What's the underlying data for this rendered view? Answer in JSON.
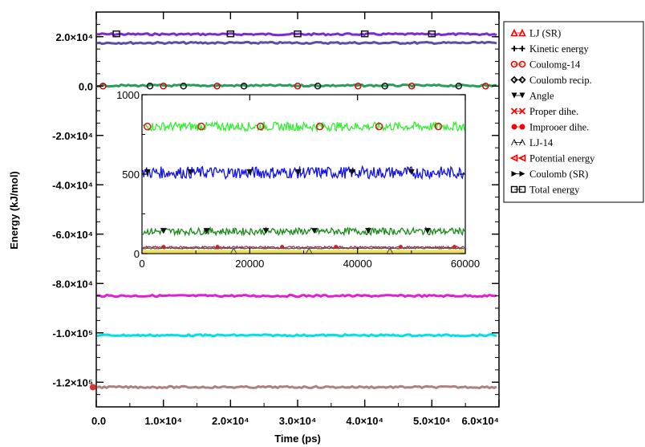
{
  "chart_data": [
    {
      "type": "line",
      "xlabel": "Time (ps)",
      "ylabel": "Energy (kJ/mol)",
      "xlim": [
        0,
        60000
      ],
      "ylim": [
        -130000,
        30000
      ],
      "x_ticks": [
        {
          "value": 0,
          "label": "0.0"
        },
        {
          "value": 10000,
          "label": "1.0×10⁴"
        },
        {
          "value": 20000,
          "label": "2.0×10⁴"
        },
        {
          "value": 30000,
          "label": "3.0×10⁴"
        },
        {
          "value": 40000,
          "label": "4.0×10⁴"
        },
        {
          "value": 50000,
          "label": "5.0×10⁴"
        },
        {
          "value": 60000,
          "label": "6.0×10⁴"
        }
      ],
      "y_ticks": [
        {
          "value": 20000,
          "label": "2.0×10⁴"
        },
        {
          "value": 0,
          "label": "0.0"
        },
        {
          "value": -20000,
          "label": "-2.0×10⁴"
        },
        {
          "value": -40000,
          "label": "-4.0×10⁴"
        },
        {
          "value": -60000,
          "label": "-6.0×10⁴"
        },
        {
          "value": -80000,
          "label": "-8.0×10⁴"
        },
        {
          "value": -100000,
          "label": "-1.0×10⁵"
        },
        {
          "value": -120000,
          "label": "-1.2×10⁵"
        }
      ],
      "series": [
        {
          "name": "LJ (SR)",
          "color": "#ff0000",
          "marker": "triangle-up",
          "value": 0
        },
        {
          "name": "Kinetic energy",
          "color": "#000000",
          "marker": "plus",
          "value": 0
        },
        {
          "name": "Coulomg-14",
          "color": "#ff0000",
          "marker": "circle",
          "value": 0
        },
        {
          "name": "Coulomb recip.",
          "color": "#000000",
          "marker": "diamond",
          "value": 0
        },
        {
          "name": "Angle",
          "color": "#000000",
          "marker": "triangle-down",
          "value": 0
        },
        {
          "name": "Proper dihe.",
          "color": "#ff0000",
          "marker": "x",
          "value": 0
        },
        {
          "name": "Improoer dihe.",
          "color": "#ff0000",
          "marker": "star",
          "value": 0
        },
        {
          "name": "LJ-14",
          "color": "#000000",
          "marker": "triangle-open",
          "value": 0
        },
        {
          "name": "Potential energy",
          "color": "#ff0000",
          "marker": "triangle-left",
          "value": 0
        },
        {
          "name": "Coulomb (SR)",
          "color": "#000000",
          "marker": "triangle-right",
          "value": 0
        },
        {
          "name": "Total energy",
          "color": "#000000",
          "marker": "square",
          "value": 0
        }
      ],
      "lines": [
        {
          "color": "#7b2bd4",
          "value": 21000
        },
        {
          "color": "#5a4fa0",
          "value": 17500
        },
        {
          "color": "#2a9d5a",
          "value": 200
        },
        {
          "color": "#e020d0",
          "value": -85000
        },
        {
          "color": "#00e0e8",
          "value": -101000
        },
        {
          "color": "#b08080",
          "value": -122000
        }
      ],
      "legend_position": "right"
    },
    {
      "type": "line",
      "title": "",
      "xlim": [
        0,
        60000
      ],
      "ylim": [
        0,
        1000
      ],
      "x_ticks": [
        {
          "value": 0,
          "label": "0"
        },
        {
          "value": 20000,
          "label": "20000"
        },
        {
          "value": 40000,
          "label": "40000"
        },
        {
          "value": 60000,
          "label": "60000"
        }
      ],
      "y_ticks": [
        {
          "value": 0,
          "label": "0"
        },
        {
          "value": 500,
          "label": "500"
        },
        {
          "value": 1000,
          "label": "1000"
        }
      ],
      "lines": [
        {
          "color": "#33ee33",
          "value": 800,
          "noise": 28
        },
        {
          "color": "#1010ee",
          "value": 510,
          "noise": 38
        },
        {
          "color": "#1a8a1a",
          "value": 140,
          "noise": 22
        },
        {
          "color": "#b02a50",
          "value": 40,
          "noise": 6
        },
        {
          "color": "#555555",
          "value": 33,
          "noise": 3
        },
        {
          "color": "#f0e040",
          "value": 12,
          "noise": 2
        }
      ]
    }
  ]
}
